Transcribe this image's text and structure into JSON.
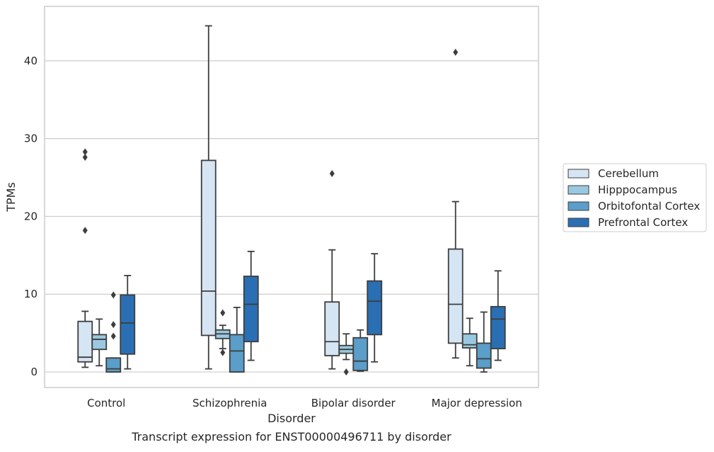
{
  "chart_data": {
    "type": "box",
    "xlabel": "Disorder",
    "ylabel": "TPMs",
    "caption": "Transcript expression for ENST00000496711 by disorder",
    "categories": [
      "Control",
      "Schizophrenia",
      "Bipolar disorder",
      "Major depression"
    ],
    "ylim": [
      -2,
      47
    ],
    "yticks": [
      0,
      10,
      20,
      30,
      40
    ],
    "grid": "horizontal",
    "legend_position": "right",
    "series": [
      {
        "name": "Cerebellum",
        "color": "#d6e5f4",
        "boxes": [
          {
            "whislo": 0.6,
            "q1": 1.3,
            "med": 1.9,
            "q3": 6.5,
            "whishi": 7.8,
            "fliers": [
              18.2,
              27.6,
              28.3
            ]
          },
          {
            "whislo": 0.4,
            "q1": 4.7,
            "med": 10.4,
            "q3": 27.2,
            "whishi": 44.5,
            "fliers": []
          },
          {
            "whislo": 0.4,
            "q1": 2.1,
            "med": 3.9,
            "q3": 9.0,
            "whishi": 15.7,
            "fliers": [
              25.5
            ]
          },
          {
            "whislo": 1.8,
            "q1": 3.7,
            "med": 8.7,
            "q3": 15.8,
            "whishi": 21.9,
            "fliers": [
              41.1
            ]
          }
        ]
      },
      {
        "name": "Hipppocampus",
        "color": "#9ac8e0",
        "boxes": [
          {
            "whislo": 0.8,
            "q1": 2.9,
            "med": 4.2,
            "q3": 4.8,
            "whishi": 6.8,
            "fliers": []
          },
          {
            "whislo": 3.0,
            "q1": 4.3,
            "med": 4.9,
            "q3": 5.4,
            "whishi": 6.0,
            "fliers": [
              2.5,
              7.6
            ]
          },
          {
            "whislo": 1.6,
            "q1": 2.4,
            "med": 2.9,
            "q3": 3.4,
            "whishi": 4.9,
            "fliers": [
              0.0
            ]
          },
          {
            "whislo": 0.8,
            "q1": 3.1,
            "med": 3.5,
            "q3": 4.9,
            "whishi": 6.9,
            "fliers": []
          }
        ]
      },
      {
        "name": "Orbitofontal Cortex",
        "color": "#5a9ec9",
        "boxes": [
          {
            "whislo": 0.0,
            "q1": 0.0,
            "med": 0.4,
            "q3": 1.8,
            "whishi": 1.8,
            "fliers": [
              4.6,
              6.1,
              9.9
            ]
          },
          {
            "whislo": 0.0,
            "q1": 0.0,
            "med": 2.7,
            "q3": 4.8,
            "whishi": 8.3,
            "fliers": []
          },
          {
            "whislo": 0.1,
            "q1": 0.2,
            "med": 1.4,
            "q3": 4.4,
            "whishi": 5.4,
            "fliers": []
          },
          {
            "whislo": 0.0,
            "q1": 0.5,
            "med": 1.7,
            "q3": 3.7,
            "whishi": 7.7,
            "fliers": []
          }
        ]
      },
      {
        "name": "Prefrontal Cortex",
        "color": "#2a6fb3",
        "boxes": [
          {
            "whislo": 0.4,
            "q1": 2.3,
            "med": 6.3,
            "q3": 9.9,
            "whishi": 12.4,
            "fliers": []
          },
          {
            "whislo": 1.5,
            "q1": 3.9,
            "med": 8.7,
            "q3": 12.3,
            "whishi": 15.5,
            "fliers": []
          },
          {
            "whislo": 1.3,
            "q1": 4.8,
            "med": 9.1,
            "q3": 11.7,
            "whishi": 15.2,
            "fliers": []
          },
          {
            "whislo": 1.5,
            "q1": 3.0,
            "med": 6.8,
            "q3": 8.4,
            "whishi": 13.0,
            "fliers": []
          }
        ]
      }
    ]
  }
}
